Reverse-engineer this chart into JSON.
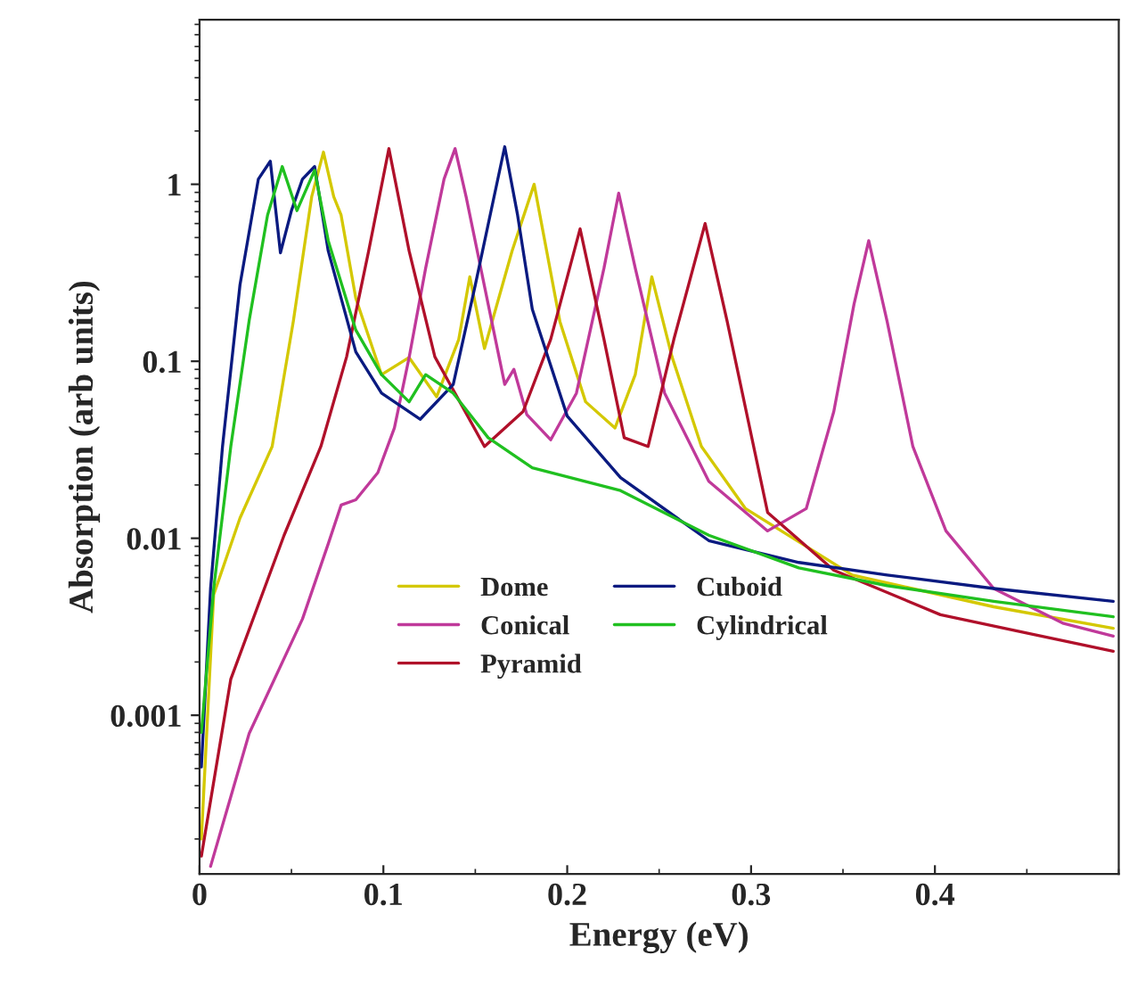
{
  "chart_data": {
    "type": "line",
    "xlabel": "Energy (eV)",
    "ylabel": "Absorption (arb units)",
    "xlim": [
      0,
      0.5
    ],
    "xticks": [
      0,
      0.1,
      0.2,
      0.3,
      0.4
    ],
    "ylim": [
      0.000127,
      8.5
    ],
    "yticks": [
      0.001,
      0.01,
      0.1,
      1
    ],
    "log": "y",
    "grid": false,
    "legend": "bottom",
    "marker": "none",
    "line_style": "solid",
    "series": [
      {
        "name": "Dome",
        "color": "#d4c800",
        "x": [
          0.001,
          0.0077,
          0.022,
          0.0395,
          0.051,
          0.061,
          0.0674,
          0.073,
          0.077,
          0.085,
          0.099,
          0.114,
          0.129,
          0.141,
          0.147,
          0.155,
          0.17,
          0.182,
          0.196,
          0.21,
          0.226,
          0.237,
          0.246,
          0.257,
          0.273,
          0.297,
          0.355,
          0.432,
          0.497
        ],
        "values": [
          0.0002,
          0.0048,
          0.013,
          0.033,
          0.168,
          0.85,
          1.52,
          0.85,
          0.67,
          0.227,
          0.084,
          0.105,
          0.063,
          0.133,
          0.3,
          0.118,
          0.42,
          1.0,
          0.168,
          0.059,
          0.042,
          0.084,
          0.3,
          0.106,
          0.033,
          0.0147,
          0.0062,
          0.0041,
          0.0031
        ]
      },
      {
        "name": "Conical",
        "color": "#c0399a",
        "x": [
          0.006,
          0.027,
          0.056,
          0.07,
          0.077,
          0.085,
          0.097,
          0.106,
          0.114,
          0.123,
          0.133,
          0.139,
          0.145,
          0.157,
          0.166,
          0.171,
          0.178,
          0.191,
          0.205,
          0.22,
          0.228,
          0.237,
          0.253,
          0.277,
          0.309,
          0.33,
          0.345,
          0.356,
          0.364,
          0.374,
          0.388,
          0.406,
          0.432,
          0.47,
          0.497
        ],
        "values": [
          0.00014,
          0.00079,
          0.0035,
          0.0093,
          0.0154,
          0.0165,
          0.0235,
          0.042,
          0.105,
          0.336,
          1.07,
          1.59,
          0.85,
          0.21,
          0.074,
          0.09,
          0.05,
          0.036,
          0.066,
          0.336,
          0.89,
          0.336,
          0.066,
          0.021,
          0.011,
          0.0147,
          0.052,
          0.21,
          0.48,
          0.168,
          0.033,
          0.011,
          0.0052,
          0.0033,
          0.0028
        ]
      },
      {
        "name": "Pyramid",
        "color": "#b0102a",
        "x": [
          0.001,
          0.017,
          0.046,
          0.066,
          0.08,
          0.092,
          0.103,
          0.114,
          0.128,
          0.155,
          0.176,
          0.191,
          0.207,
          0.22,
          0.231,
          0.244,
          0.258,
          0.275,
          0.287,
          0.309,
          0.345,
          0.403,
          0.451,
          0.497
        ],
        "values": [
          0.00016,
          0.0016,
          0.0104,
          0.033,
          0.106,
          0.42,
          1.59,
          0.42,
          0.106,
          0.033,
          0.052,
          0.133,
          0.56,
          0.133,
          0.037,
          0.033,
          0.133,
          0.6,
          0.168,
          0.014,
          0.0066,
          0.0037,
          0.0029,
          0.0023
        ]
      },
      {
        "name": "Cuboid",
        "color": "#0a1a80",
        "x": [
          0.001,
          0.006,
          0.0125,
          0.022,
          0.032,
          0.0385,
          0.044,
          0.05,
          0.056,
          0.0626,
          0.07,
          0.085,
          0.099,
          0.12,
          0.138,
          0.15,
          0.166,
          0.173,
          0.181,
          0.2,
          0.229,
          0.277,
          0.326,
          0.374,
          0.432,
          0.497
        ],
        "values": [
          0.00051,
          0.0052,
          0.033,
          0.27,
          1.07,
          1.35,
          0.41,
          0.71,
          1.07,
          1.26,
          0.42,
          0.113,
          0.066,
          0.047,
          0.074,
          0.27,
          1.63,
          0.67,
          0.197,
          0.049,
          0.022,
          0.0097,
          0.0073,
          0.0062,
          0.0052,
          0.0044
        ]
      },
      {
        "name": "Cylindrical",
        "color": "#20c020",
        "x": [
          0.001,
          0.0077,
          0.017,
          0.027,
          0.037,
          0.045,
          0.053,
          0.0626,
          0.07,
          0.085,
          0.099,
          0.114,
          0.123,
          0.138,
          0.157,
          0.181,
          0.229,
          0.277,
          0.326,
          0.374,
          0.432,
          0.497
        ],
        "values": [
          0.0008,
          0.0052,
          0.033,
          0.17,
          0.67,
          1.26,
          0.71,
          1.2,
          0.48,
          0.15,
          0.084,
          0.059,
          0.084,
          0.066,
          0.037,
          0.025,
          0.0186,
          0.0104,
          0.0068,
          0.0054,
          0.0044,
          0.0036
        ]
      }
    ]
  }
}
